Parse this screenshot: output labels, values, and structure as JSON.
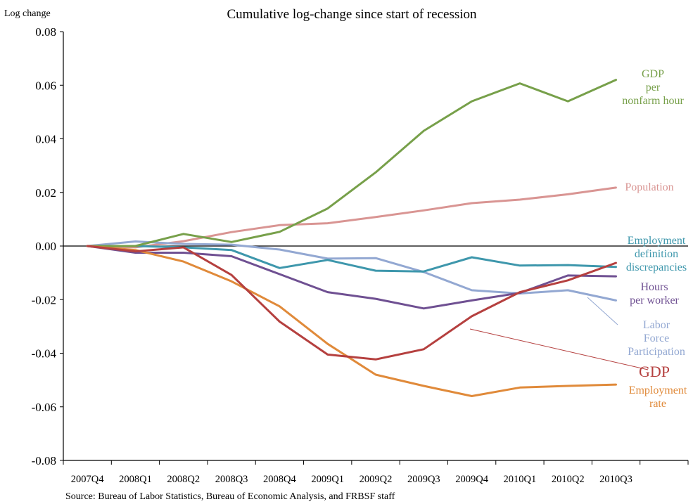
{
  "chart_data": {
    "type": "line",
    "title": "Cumulative log-change since start of recession",
    "ylabel": "Log change",
    "xlabel": "",
    "source": "Source: Bureau of Labor Statistics, Bureau of Economic Analysis, and FRBSF staff",
    "categories": [
      "2007Q4",
      "2008Q1",
      "2008Q2",
      "2008Q3",
      "2008Q4",
      "2009Q1",
      "2009Q2",
      "2009Q3",
      "2009Q4",
      "2010Q1",
      "2010Q2",
      "2010Q3"
    ],
    "ylim": [
      -0.08,
      0.08
    ],
    "yticks": [
      0.08,
      0.06,
      0.04,
      0.02,
      0.0,
      -0.02,
      -0.04,
      -0.06,
      -0.08
    ],
    "ytick_labels": [
      "0.08",
      "0.06",
      "0.04",
      "0.02",
      "0.00",
      "-0.02",
      "-0.04",
      "-0.06",
      "-0.08"
    ],
    "grid": false,
    "series": [
      {
        "name": "GDP per nonfarm hour",
        "label_lines": [
          "GDP",
          "per",
          "nonfarm hour"
        ],
        "color": "#77a04a",
        "values": [
          0.0,
          0.0,
          0.0045,
          0.0015,
          0.0053,
          0.014,
          0.0275,
          0.043,
          0.054,
          0.0607,
          0.054,
          0.062
        ]
      },
      {
        "name": "Population",
        "label_lines": [
          "Population"
        ],
        "color": "#d99593",
        "values": [
          0.0,
          -0.0005,
          0.0018,
          0.0052,
          0.0078,
          0.0085,
          0.0108,
          0.0133,
          0.016,
          0.0173,
          0.0193,
          0.0218
        ]
      },
      {
        "name": "Employment definition discrepancies",
        "label_lines": [
          "Employment",
          "definition",
          "discrepancies"
        ],
        "color": "#3e97ac",
        "values": [
          0.0,
          0.0,
          -0.0005,
          -0.0015,
          -0.0082,
          -0.0052,
          -0.0092,
          -0.0095,
          -0.0042,
          -0.0073,
          -0.0071,
          -0.0078
        ]
      },
      {
        "name": "Hours per worker",
        "label_lines": [
          "Hours",
          "per worker"
        ],
        "color": "#6f5092",
        "values": [
          0.0,
          -0.0025,
          -0.0025,
          -0.0038,
          -0.0105,
          -0.0172,
          -0.0197,
          -0.0233,
          -0.0203,
          -0.0175,
          -0.011,
          -0.0113
        ]
      },
      {
        "name": "Labor Force Participation",
        "label_lines": [
          "Labor",
          "Force",
          "Participation"
        ],
        "color": "#93a8d2",
        "values": [
          0.0,
          0.0017,
          0.0008,
          0.0005,
          -0.0013,
          -0.0047,
          -0.0045,
          -0.0097,
          -0.0165,
          -0.0177,
          -0.0165,
          -0.0203
        ]
      },
      {
        "name": "GDP",
        "label_lines": [
          "GDP"
        ],
        "color": "#b5403f",
        "values": [
          0.0,
          -0.002,
          -0.0005,
          -0.0108,
          -0.0282,
          -0.0405,
          -0.0423,
          -0.0385,
          -0.0262,
          -0.0172,
          -0.0128,
          -0.0063
        ]
      },
      {
        "name": "Employment rate",
        "label_lines": [
          "Employment",
          "rate"
        ],
        "color": "#e08a3a",
        "values": [
          0.0,
          -0.0015,
          -0.0058,
          -0.0132,
          -0.0225,
          -0.0365,
          -0.048,
          -0.0522,
          -0.056,
          -0.0528,
          -0.0522,
          -0.0517
        ]
      }
    ]
  }
}
